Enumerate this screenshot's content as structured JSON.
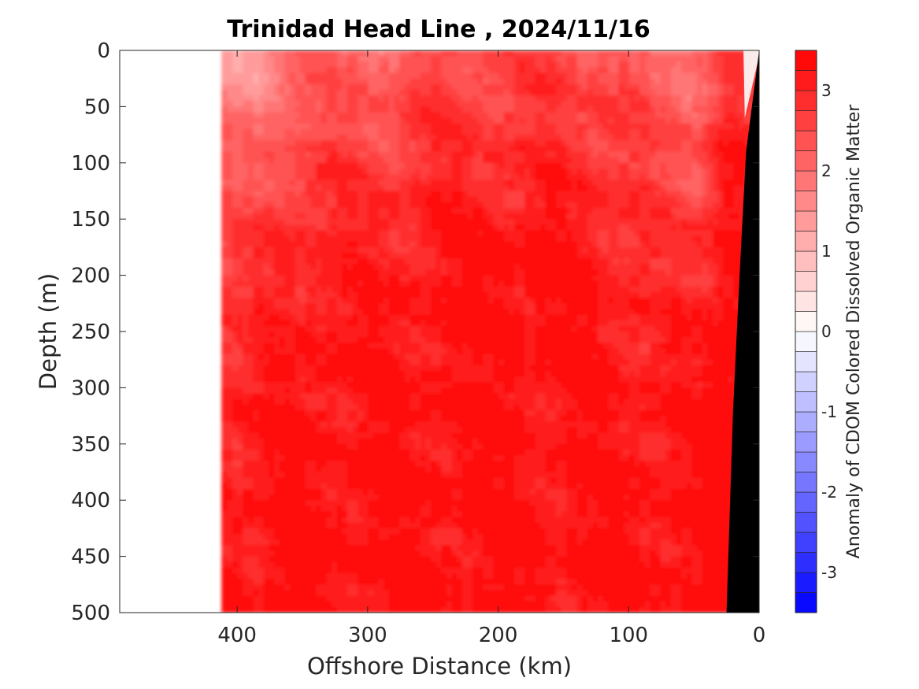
{
  "chart_data": {
    "type": "heatmap",
    "title": "Trinidad Head Line , 2024/11/16",
    "xlabel": "Offshore Distance (km)",
    "ylabel": "Depth (m)",
    "xlim": [
      490,
      0
    ],
    "ylim": [
      0,
      500
    ],
    "x_direction": "reversed",
    "y_direction": "reversed",
    "x_ticks": [
      400,
      300,
      200,
      100,
      0
    ],
    "y_ticks": [
      0,
      50,
      100,
      150,
      200,
      250,
      300,
      350,
      400,
      450,
      500
    ],
    "data_extent_km": [
      410,
      0
    ],
    "colorbar": {
      "label": "Anomaly of CDOM Colored Dissolved Organic Matter",
      "range": [
        -3.5,
        3.5
      ],
      "ticks": [
        3,
        2,
        1,
        0,
        -1,
        -2,
        -3
      ],
      "step": 0.25,
      "colormap": "blue-white-red",
      "color_min": "#0000ff",
      "color_zero": "#ffffff",
      "color_max": "#ff0000"
    },
    "bathymetry": {
      "color": "#000000",
      "profile": [
        [
          0,
          0
        ],
        [
          10,
          90
        ],
        [
          15,
          200
        ],
        [
          20,
          320
        ],
        [
          25,
          500
        ]
      ]
    },
    "grid": false,
    "field_summary": {
      "near_surface_offshore": 1.4,
      "near_surface_mid": 2.2,
      "interior": 3.0,
      "deep": 3.4,
      "coastal_band": 3.3
    }
  }
}
